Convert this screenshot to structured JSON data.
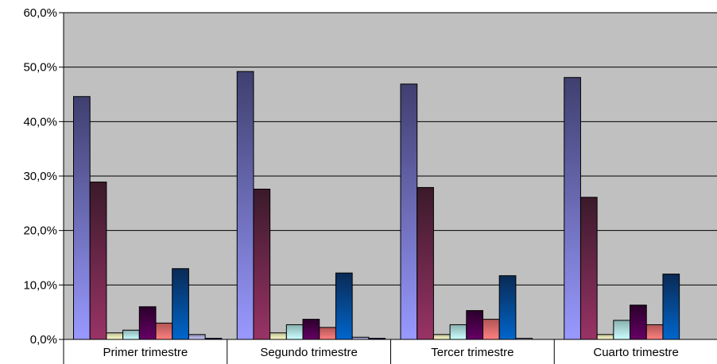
{
  "chart_data": {
    "type": "bar",
    "title": "",
    "xlabel": "",
    "ylabel": "",
    "ylim": [
      0,
      0.6
    ],
    "y_tick_labels": [
      "0,0%",
      "10,0%",
      "20,0%",
      "30,0%",
      "40,0%",
      "50,0%",
      "60,0%"
    ],
    "y_tick_values": [
      0,
      0.1,
      0.2,
      0.3,
      0.4,
      0.5,
      0.6
    ],
    "grid": true,
    "legend": "none",
    "plot_background": "#C0C0C0",
    "categories": [
      "Primer trimestre",
      "Segundo trimestre",
      "Tercer trimestre",
      "Cuarto trimestre"
    ],
    "series": [
      {
        "values": [
          0.446,
          0.492,
          0.469,
          0.481
        ],
        "color_light": "#9999FF",
        "color_dark": "#3F3F6F"
      },
      {
        "values": [
          0.289,
          0.276,
          0.279,
          0.261
        ],
        "color_light": "#993366",
        "color_dark": "#3A1A2A"
      },
      {
        "values": [
          0.012,
          0.012,
          0.009,
          0.009
        ],
        "color_light": "#FFFFCC",
        "color_dark": "#BDBD95"
      },
      {
        "values": [
          0.017,
          0.027,
          0.027,
          0.035
        ],
        "color_light": "#CCFFFF",
        "color_dark": "#8AB0B0"
      },
      {
        "values": [
          0.06,
          0.037,
          0.053,
          0.063
        ],
        "color_light": "#660066",
        "color_dark": "#2A002A"
      },
      {
        "values": [
          0.03,
          0.022,
          0.037,
          0.027
        ],
        "color_light": "#FF8080",
        "color_dark": "#B05555"
      },
      {
        "values": [
          0.13,
          0.122,
          0.117,
          0.12
        ],
        "color_light": "#0066CC",
        "color_dark": "#0A2A55"
      },
      {
        "values": [
          0.009,
          0.004,
          0.002,
          0.0
        ],
        "color_light": "#CCCCFF",
        "color_dark": "#8888B0"
      },
      {
        "values": [
          0.002,
          0.002,
          0.0,
          0.0
        ],
        "color_light": "#000080",
        "color_dark": "#000030"
      }
    ]
  }
}
